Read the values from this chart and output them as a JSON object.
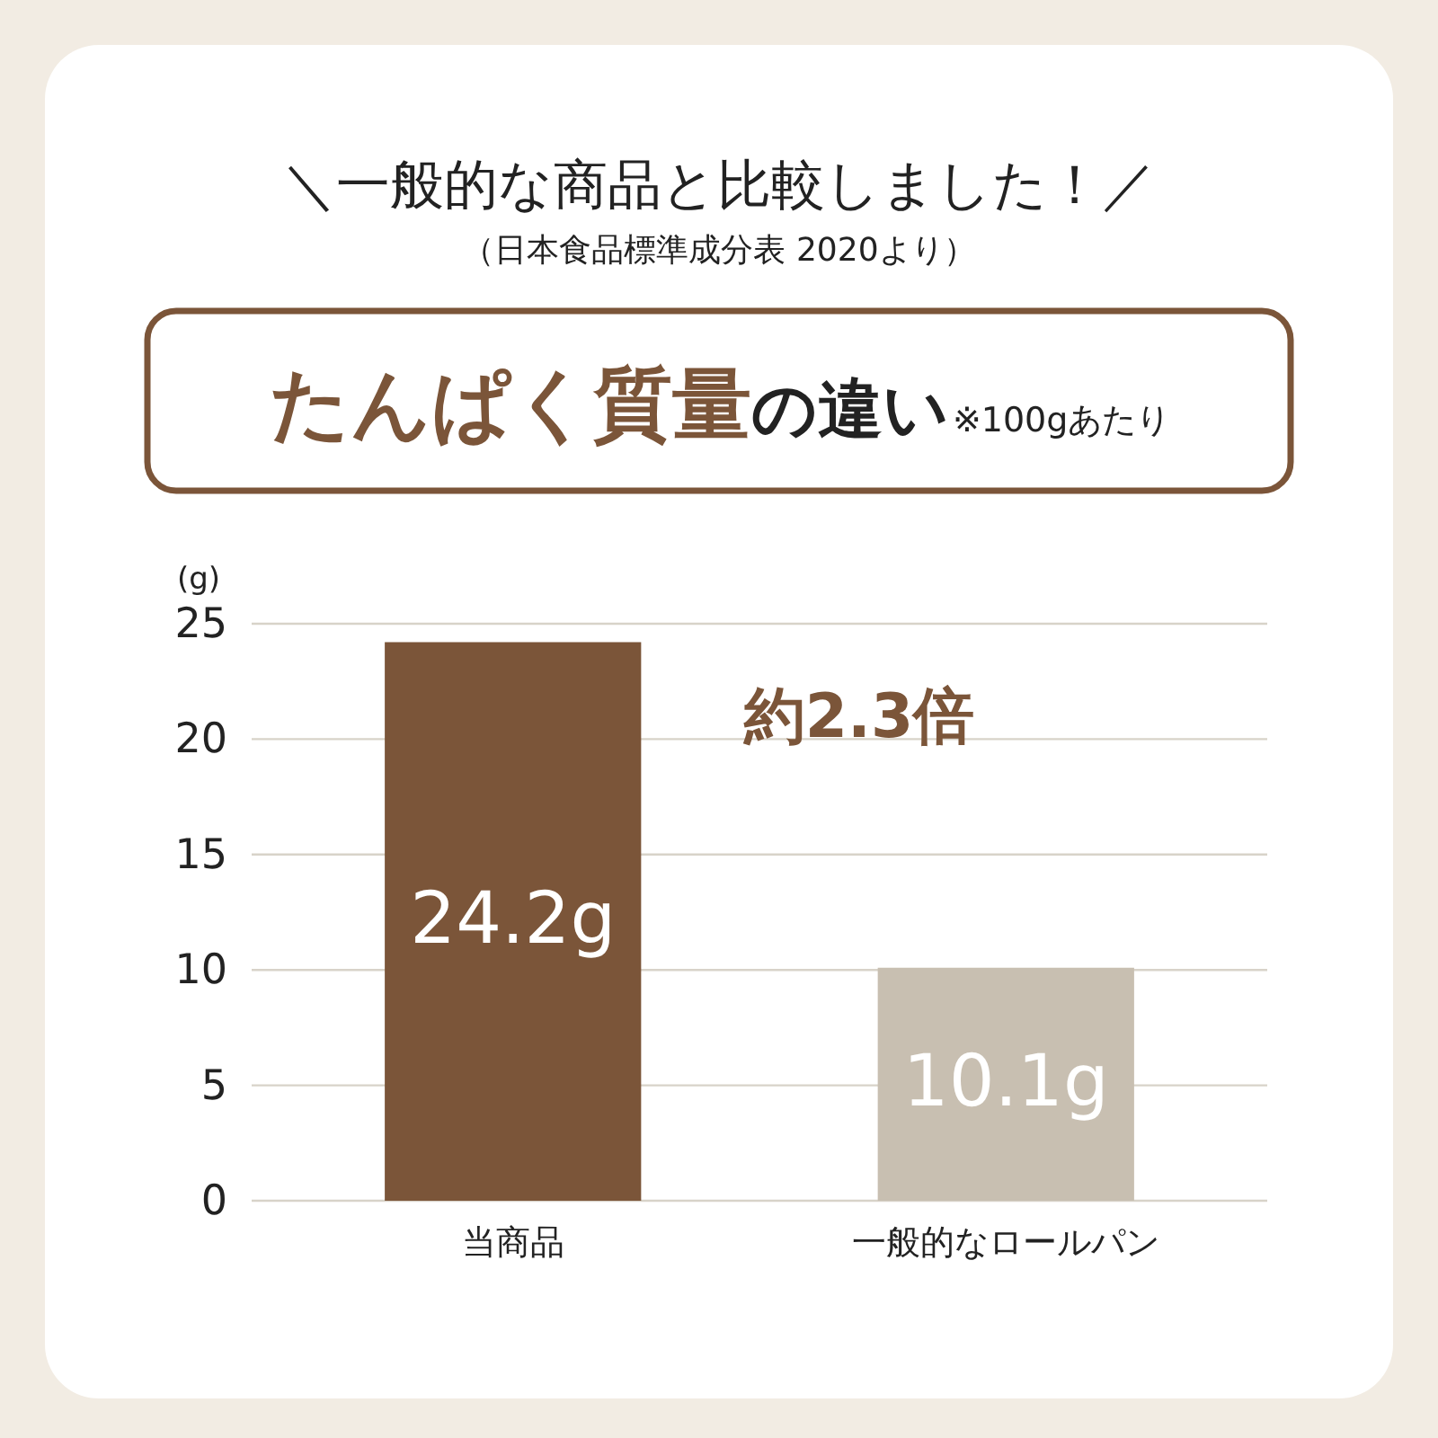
{
  "chart_data": {
    "type": "bar",
    "title": "＼一般的な商品と比較しました！／",
    "subtitle": "（日本食品標準成分表 2020より）",
    "ylabel": "(g)",
    "categories": [
      "当商品",
      "一般的なロールパン"
    ],
    "values": [
      24.2,
      10.1
    ],
    "colors": [
      "#7b5539",
      "#c8bfb1"
    ],
    "value_labels": [
      "24.2g",
      "10.1g"
    ],
    "ylim": [
      0,
      25
    ],
    "yticks": [
      0,
      5,
      10,
      15,
      20,
      25
    ],
    "grid": "y",
    "legend": false,
    "annotations": [
      "たんぱく質量",
      "の違い",
      "※100gあたり",
      "約2.3倍"
    ]
  }
}
